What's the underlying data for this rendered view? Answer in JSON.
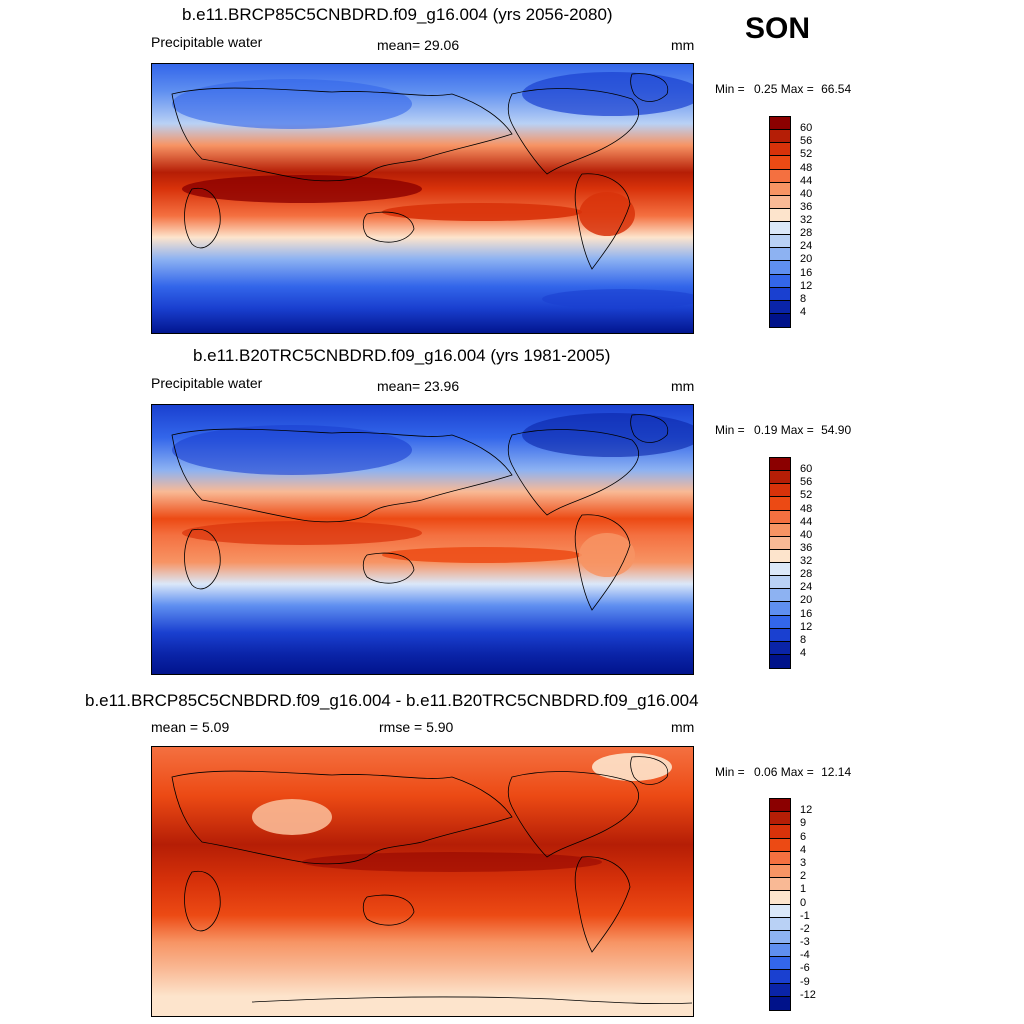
{
  "season": "SON",
  "panels": [
    {
      "title": "b.e11.BRCP85C5CNBDRD.f09_g16.004 (yrs 2056-2080)",
      "left_label": "Precipitable water",
      "center_label": "mean=  29.06",
      "units": "mm",
      "min_label": "Min =",
      "min_value": "0.25",
      "max_label": "Max =",
      "max_value": "66.54",
      "colorbar": {
        "labels": [
          "60",
          "56",
          "52",
          "48",
          "44",
          "40",
          "36",
          "32",
          "28",
          "24",
          "20",
          "16",
          "12",
          "8",
          "4"
        ],
        "colors": [
          "#8b0000",
          "#b51e06",
          "#d8320a",
          "#ec4a14",
          "#f47040",
          "#f79464",
          "#f9b995",
          "#fde4cc",
          "#dbe8f9",
          "#b9d1f5",
          "#8db2f2",
          "#5f8ff0",
          "#3366ea",
          "#1a40d0",
          "#0a24a8",
          "#00128a"
        ]
      },
      "map_theme": "abs_future"
    },
    {
      "title": "b.e11.B20TRC5CNBDRD.f09_g16.004 (yrs 1981-2005)",
      "left_label": "Precipitable water",
      "center_label": "mean=  23.96",
      "units": "mm",
      "min_label": "Min =",
      "min_value": "0.19",
      "max_label": "Max =",
      "max_value": "54.90",
      "colorbar": {
        "labels": [
          "60",
          "56",
          "52",
          "48",
          "44",
          "40",
          "36",
          "32",
          "28",
          "24",
          "20",
          "16",
          "12",
          "8",
          "4"
        ],
        "colors": [
          "#8b0000",
          "#b51e06",
          "#d8320a",
          "#ec4a14",
          "#f47040",
          "#f79464",
          "#f9b995",
          "#fde4cc",
          "#dbe8f9",
          "#b9d1f5",
          "#8db2f2",
          "#5f8ff0",
          "#3366ea",
          "#1a40d0",
          "#0a24a8",
          "#00128a"
        ]
      },
      "map_theme": "abs_past"
    },
    {
      "title": "b.e11.BRCP85C5CNBDRD.f09_g16.004 - b.e11.B20TRC5CNBDRD.f09_g16.004",
      "left_label": "mean =   5.09",
      "center_label": "rmse =   5.90",
      "units": "mm",
      "min_label": "Min =",
      "min_value": "0.06",
      "max_label": "Max =",
      "max_value": "12.14",
      "colorbar": {
        "labels": [
          "12",
          "9",
          "6",
          "4",
          "3",
          "2",
          "1",
          "0",
          "-1",
          "-2",
          "-3",
          "-4",
          "-6",
          "-9",
          "-12"
        ],
        "colors": [
          "#8b0000",
          "#b51e06",
          "#d8320a",
          "#ec4a14",
          "#f47040",
          "#f79464",
          "#f9b995",
          "#fde4cc",
          "#dbe8f9",
          "#b9d1f5",
          "#8db2f2",
          "#5f8ff0",
          "#3366ea",
          "#1a40d0",
          "#0a24a8",
          "#00128a"
        ]
      },
      "map_theme": "diff"
    }
  ]
}
